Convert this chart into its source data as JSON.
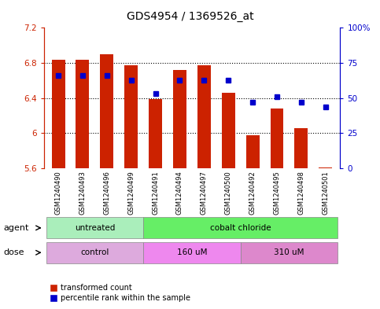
{
  "title": "GDS4954 / 1369526_at",
  "samples": [
    "GSM1240490",
    "GSM1240493",
    "GSM1240496",
    "GSM1240499",
    "GSM1240491",
    "GSM1240494",
    "GSM1240497",
    "GSM1240500",
    "GSM1240492",
    "GSM1240495",
    "GSM1240498",
    "GSM1240501"
  ],
  "bar_values": [
    6.84,
    6.84,
    6.9,
    6.77,
    6.39,
    6.72,
    6.77,
    6.46,
    5.98,
    6.28,
    6.06,
    5.61
  ],
  "bar_base": 5.6,
  "dot_values": [
    66,
    66,
    66,
    63,
    53,
    63,
    63,
    63,
    47,
    51,
    47,
    44
  ],
  "ylim_left": [
    5.6,
    7.2
  ],
  "ylim_right": [
    0,
    100
  ],
  "yticks_left": [
    5.6,
    6.0,
    6.4,
    6.8,
    7.2
  ],
  "ytick_labels_left": [
    "5.6",
    "6",
    "6.4",
    "6.8",
    "7.2"
  ],
  "yticks_right": [
    0,
    25,
    50,
    75,
    100
  ],
  "ytick_labels_right": [
    "0",
    "25",
    "50",
    "75",
    "100%"
  ],
  "bar_color": "#cc2200",
  "dot_color": "#0000cc",
  "agent_labels": [
    {
      "text": "untreated",
      "start": 0,
      "end": 3,
      "color": "#aaeebb"
    },
    {
      "text": "cobalt chloride",
      "start": 4,
      "end": 11,
      "color": "#66ee66"
    }
  ],
  "dose_labels": [
    {
      "text": "control",
      "start": 0,
      "end": 3,
      "color": "#ddaadd"
    },
    {
      "text": "160 uM",
      "start": 4,
      "end": 7,
      "color": "#ee88ee"
    },
    {
      "text": "310 uM",
      "start": 8,
      "end": 11,
      "color": "#dd88cc"
    }
  ],
  "legend_bar_label": "transformed count",
  "legend_dot_label": "percentile rank within the sample",
  "bg_color": "#ffffff",
  "label_color_left": "#cc2200",
  "label_color_right": "#0000cc",
  "agent_row_label": "agent",
  "dose_row_label": "dose",
  "grid_yticks": [
    6.0,
    6.4,
    6.8
  ]
}
